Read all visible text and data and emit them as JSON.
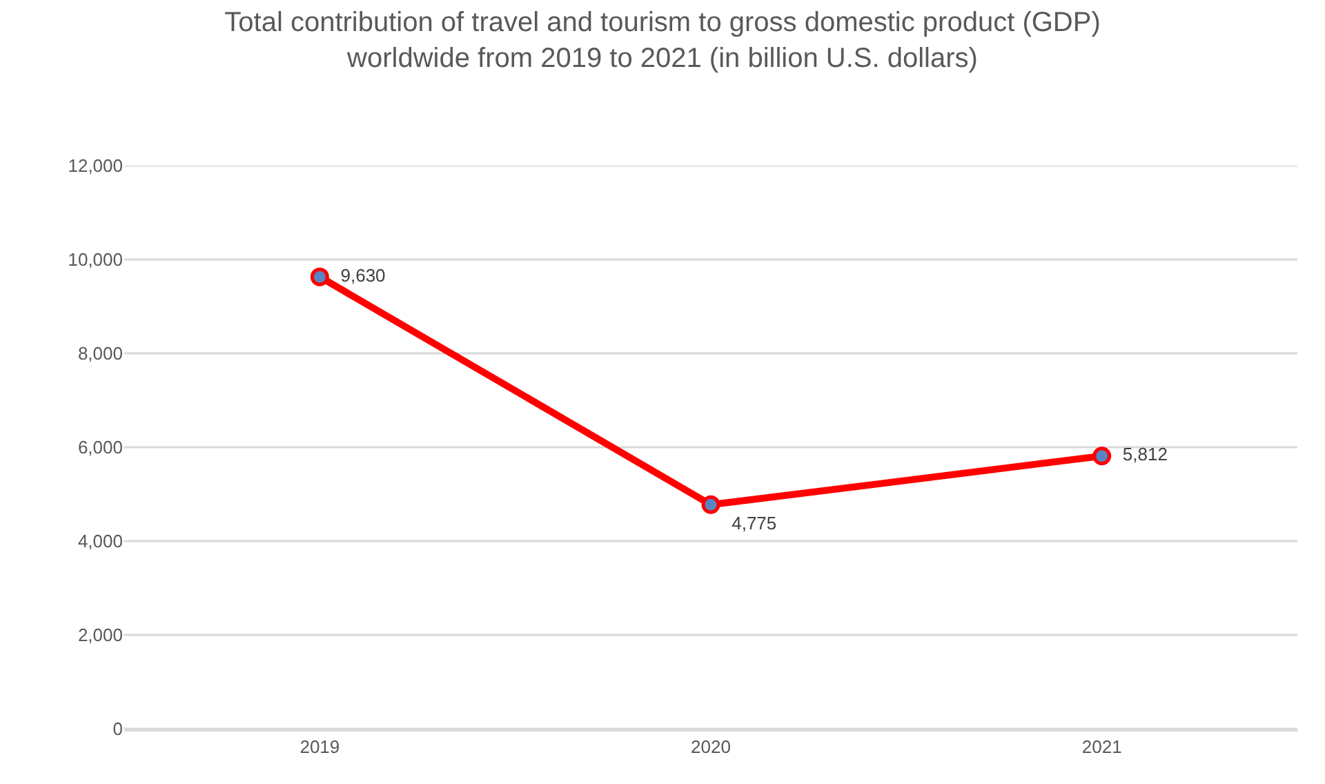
{
  "chart_data": {
    "type": "line",
    "title": "Total contribution of travel and tourism to gross domestic product (GDP) worldwide from 2019 to 2021 (in billion U.S. dollars)",
    "categories": [
      "2019",
      "2020",
      "2021"
    ],
    "series": [
      {
        "color": "#ff0000",
        "colors": [
          "#5b84c4",
          "#5b84c4",
          "#5b84c4"
        ],
        "values": [
          9630,
          4775,
          5812
        ],
        "value_labels": [
          "9,630",
          "4,775",
          "5,812"
        ]
      }
    ],
    "ylim": [
      0,
      12000
    ],
    "yticks": [
      0,
      {
        "value": 2000,
        "label": "2,000"
      },
      {
        "value": 4000,
        "label": "4,000"
      },
      {
        "value": 6000,
        "label": "6,000"
      },
      {
        "value": 8000,
        "label": "8,000"
      },
      {
        "value": 10000,
        "label": "10,000"
      },
      {
        "value": 12000,
        "label": "12,000"
      }
    ],
    "grid": "y",
    "marker": "circle",
    "line_style": "solid"
  }
}
